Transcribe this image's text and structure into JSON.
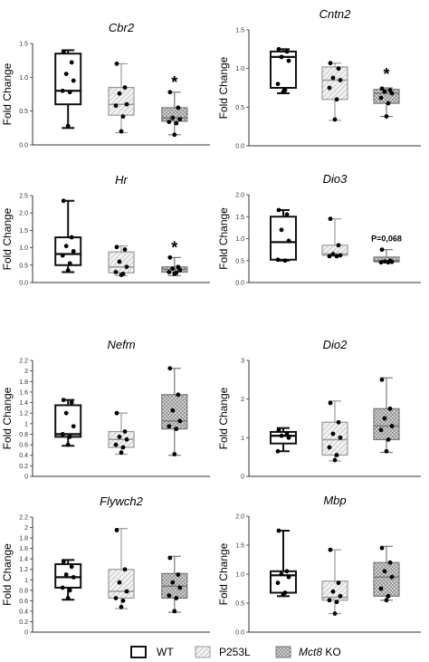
{
  "groups": [
    "WT",
    "P253L",
    "Mct8 KO"
  ],
  "legend": [
    {
      "label": "WT",
      "pattern": "none",
      "italic": ""
    },
    {
      "label": "P253L",
      "pattern": "hatch",
      "italic": ""
    },
    {
      "label": " KO",
      "pattern": "cross",
      "italic": "Mct8"
    }
  ],
  "chart_data": [
    {
      "type": "box",
      "title": "Cbr2",
      "ylabel": "Fold Change",
      "ylim": [
        0,
        1.5
      ],
      "yticks": [
        "0.0",
        "0.5",
        "1.0",
        "1.5"
      ],
      "series": [
        {
          "name": "WT",
          "box": {
            "min": 0.25,
            "q1": 0.6,
            "median": 0.8,
            "q3": 1.35,
            "max": 1.4
          },
          "points": [
            1.38,
            1.22,
            1.05,
            0.95,
            0.8,
            0.78,
            0.28
          ]
        },
        {
          "name": "P253L",
          "box": {
            "min": 0.18,
            "q1": 0.44,
            "median": 0.6,
            "q3": 0.85,
            "max": 1.2
          },
          "points": [
            1.2,
            0.85,
            0.76,
            0.6,
            0.58,
            0.42,
            0.2
          ]
        },
        {
          "name": "Mct8 KO",
          "box": {
            "min": 0.15,
            "q1": 0.35,
            "median": 0.4,
            "q3": 0.55,
            "max": 0.78
          },
          "points": [
            0.78,
            0.55,
            0.4,
            0.38,
            0.34,
            0.32,
            0.15
          ]
        }
      ],
      "annotation": {
        "group": 2,
        "text": "*",
        "y": 0.95
      }
    },
    {
      "type": "box",
      "title": "Cntn2",
      "ylabel": "Fold Change",
      "ylim": [
        0,
        1.5
      ],
      "yticks": [
        "0.0",
        "0.5",
        "1.0",
        "1.5"
      ],
      "series": [
        {
          "name": "WT",
          "box": {
            "min": 0.68,
            "q1": 0.75,
            "median": 1.15,
            "q3": 1.22,
            "max": 1.25
          },
          "points": [
            1.25,
            1.22,
            1.15,
            1.1,
            0.8,
            0.72,
            0.7
          ]
        },
        {
          "name": "P253L",
          "box": {
            "min": 0.33,
            "q1": 0.6,
            "median": 0.85,
            "q3": 1.02,
            "max": 1.07
          },
          "points": [
            1.07,
            1.0,
            0.88,
            0.85,
            0.75,
            0.6,
            0.34
          ]
        },
        {
          "name": "Mct8 KO",
          "box": {
            "min": 0.38,
            "q1": 0.55,
            "median": 0.68,
            "q3": 0.73,
            "max": 0.75
          },
          "points": [
            0.74,
            0.72,
            0.7,
            0.68,
            0.62,
            0.55,
            0.38
          ]
        }
      ],
      "annotation": {
        "group": 2,
        "text": "*",
        "y": 0.95
      }
    },
    {
      "type": "box",
      "title": "Hr",
      "ylabel": "Fold Change",
      "ylim": [
        0,
        2.5
      ],
      "yticks": [
        "0.0",
        "0.5",
        "1.0",
        "1.5",
        "2.0",
        "2.5"
      ],
      "series": [
        {
          "name": "WT",
          "box": {
            "min": 0.3,
            "q1": 0.5,
            "median": 0.82,
            "q3": 1.3,
            "max": 2.35
          },
          "points": [
            2.35,
            1.3,
            1.05,
            0.9,
            0.78,
            0.55,
            0.35
          ]
        },
        {
          "name": "P253L",
          "box": {
            "min": 0.2,
            "q1": 0.28,
            "median": 0.45,
            "q3": 0.88,
            "max": 1.05
          },
          "points": [
            1.02,
            0.95,
            0.6,
            0.45,
            0.3,
            0.25,
            0.22
          ]
        },
        {
          "name": "Mct8 KO",
          "box": {
            "min": 0.2,
            "q1": 0.3,
            "median": 0.38,
            "q3": 0.45,
            "max": 0.72
          },
          "points": [
            0.72,
            0.45,
            0.4,
            0.36,
            0.3,
            0.28,
            0.25
          ]
        }
      ],
      "annotation": {
        "group": 2,
        "text": "*",
        "y": 1.05
      }
    },
    {
      "type": "box",
      "title": "Dio3",
      "ylabel": "Fold Change",
      "ylim": [
        0,
        2.0
      ],
      "yticks": [
        "0.0",
        "0.5",
        "1.0",
        "1.5",
        "2.0"
      ],
      "series": [
        {
          "name": "WT",
          "box": {
            "min": 0.5,
            "q1": 0.52,
            "median": 0.92,
            "q3": 1.5,
            "max": 1.65
          },
          "points": [
            1.65,
            1.55,
            1.2,
            0.95,
            0.52,
            0.5
          ]
        },
        {
          "name": "P253L",
          "box": {
            "min": 0.6,
            "q1": 0.62,
            "median": 0.65,
            "q3": 0.85,
            "max": 1.45
          },
          "points": [
            1.45,
            0.85,
            0.65,
            0.62,
            0.6,
            0.6
          ]
        },
        {
          "name": "Mct8 KO",
          "box": {
            "min": 0.45,
            "q1": 0.47,
            "median": 0.5,
            "q3": 0.58,
            "max": 0.75
          },
          "points": [
            0.75,
            0.5,
            0.48,
            0.47,
            0.46,
            0.46
          ]
        }
      ],
      "annotation": {
        "group": 2,
        "text": "P=0,068",
        "y": 1.0
      }
    },
    {
      "type": "box",
      "title": "Nefm",
      "ylabel": "Fold Change",
      "ylim": [
        0,
        2.2
      ],
      "yticks": [
        "0",
        "0.2",
        "0.4",
        "0.6",
        "0.8",
        "1",
        "1.2",
        "1.4",
        "1.6",
        "1.8",
        "2",
        "2.2"
      ],
      "series": [
        {
          "name": "WT",
          "box": {
            "min": 0.58,
            "q1": 0.75,
            "median": 0.8,
            "q3": 1.35,
            "max": 1.45
          },
          "points": [
            1.45,
            1.4,
            1.2,
            0.95,
            0.8,
            0.75,
            0.6
          ]
        },
        {
          "name": "P253L",
          "box": {
            "min": 0.42,
            "q1": 0.55,
            "median": 0.7,
            "q3": 0.85,
            "max": 1.2
          },
          "points": [
            1.2,
            0.85,
            0.75,
            0.7,
            0.6,
            0.55,
            0.45
          ]
        },
        {
          "name": "Mct8 KO",
          "box": {
            "min": 0.4,
            "q1": 0.9,
            "median": 1.05,
            "q3": 1.55,
            "max": 2.05
          },
          "points": [
            2.05,
            1.55,
            1.25,
            1.05,
            0.95,
            0.9,
            0.42
          ]
        }
      ]
    },
    {
      "type": "box",
      "title": "Dio2",
      "ylabel": "Fold Change",
      "ylim": [
        0,
        3
      ],
      "yticks": [
        "0",
        "1",
        "2",
        "3"
      ],
      "series": [
        {
          "name": "WT",
          "box": {
            "min": 0.65,
            "q1": 0.85,
            "median": 1.05,
            "q3": 1.15,
            "max": 1.25
          },
          "points": [
            1.2,
            1.1,
            1.05,
            1.0,
            0.65
          ]
        },
        {
          "name": "P253L",
          "box": {
            "min": 0.4,
            "q1": 0.55,
            "median": 0.95,
            "q3": 1.4,
            "max": 1.95
          },
          "points": [
            1.9,
            1.4,
            1.1,
            1.0,
            0.75,
            0.55,
            0.42
          ]
        },
        {
          "name": "Mct8 KO",
          "box": {
            "min": 0.62,
            "q1": 0.95,
            "median": 1.3,
            "q3": 1.75,
            "max": 2.55
          },
          "points": [
            2.5,
            1.75,
            1.5,
            1.3,
            1.2,
            0.95,
            0.65
          ]
        }
      ]
    },
    {
      "type": "box",
      "title": "Flywch2",
      "ylabel": "Fold Change",
      "ylim": [
        0,
        2.2
      ],
      "yticks": [
        "0",
        "0.2",
        "0.4",
        "0.6",
        "0.8",
        "1",
        "1.2",
        "1.4",
        "1.6",
        "1.8",
        "2",
        "2.2"
      ],
      "series": [
        {
          "name": "WT",
          "box": {
            "min": 0.62,
            "q1": 0.85,
            "median": 1.05,
            "q3": 1.3,
            "max": 1.38
          },
          "points": [
            1.35,
            1.25,
            1.1,
            1.05,
            0.85,
            0.8,
            0.65
          ]
        },
        {
          "name": "P253L",
          "box": {
            "min": 0.45,
            "q1": 0.65,
            "median": 0.78,
            "q3": 1.2,
            "max": 1.98
          },
          "points": [
            1.95,
            1.2,
            0.95,
            0.78,
            0.65,
            0.6,
            0.48
          ]
        },
        {
          "name": "Mct8 KO",
          "box": {
            "min": 0.38,
            "q1": 0.65,
            "median": 0.88,
            "q3": 1.12,
            "max": 1.45
          },
          "points": [
            1.42,
            1.1,
            0.95,
            0.85,
            0.7,
            0.65,
            0.4
          ]
        }
      ]
    },
    {
      "type": "box",
      "title": "Mbp",
      "ylabel": "Fold Change",
      "ylim": [
        0,
        2.0
      ],
      "yticks": [
        "0.0",
        "0.5",
        "1.0",
        "1.5",
        "2.0"
      ],
      "series": [
        {
          "name": "WT",
          "box": {
            "min": 0.62,
            "q1": 0.68,
            "median": 0.98,
            "q3": 1.05,
            "max": 1.75
          },
          "points": [
            1.75,
            1.05,
            1.0,
            0.95,
            0.85,
            0.68,
            0.65
          ]
        },
        {
          "name": "P253L",
          "box": {
            "min": 0.32,
            "q1": 0.55,
            "median": 0.6,
            "q3": 0.88,
            "max": 1.42
          },
          "points": [
            1.42,
            0.85,
            0.7,
            0.62,
            0.55,
            0.52,
            0.32
          ]
        },
        {
          "name": "Mct8 KO",
          "box": {
            "min": 0.55,
            "q1": 0.62,
            "median": 0.95,
            "q3": 1.2,
            "max": 1.48
          },
          "points": [
            1.45,
            1.2,
            1.05,
            0.95,
            0.75,
            0.62,
            0.55
          ]
        }
      ]
    }
  ]
}
